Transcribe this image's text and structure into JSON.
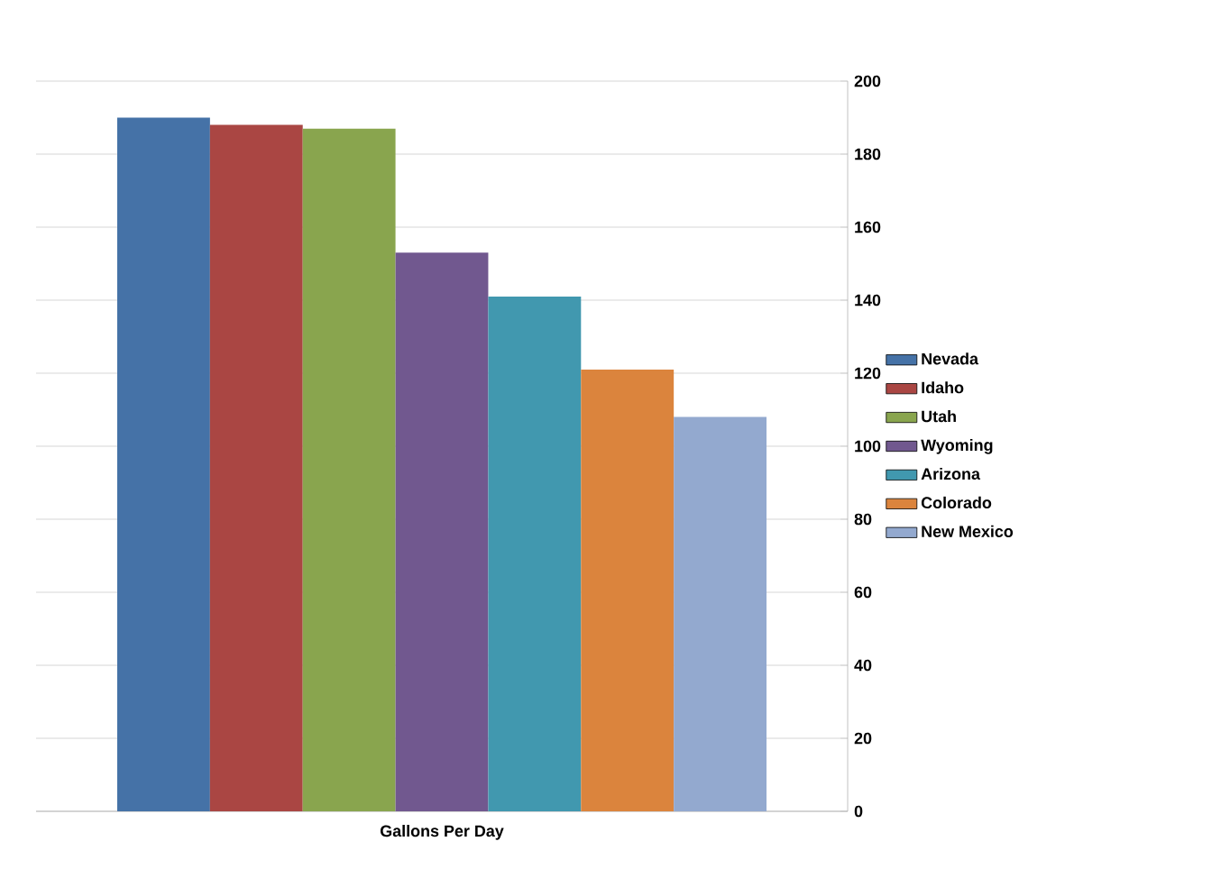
{
  "chart_data": {
    "type": "bar",
    "categories": [
      "Gallons Per Day"
    ],
    "series": [
      {
        "name": "Nevada",
        "color": "#4572a7",
        "values": [
          190
        ]
      },
      {
        "name": "Idaho",
        "color": "#aa4643",
        "values": [
          188
        ]
      },
      {
        "name": "Utah",
        "color": "#89a54e",
        "values": [
          187
        ]
      },
      {
        "name": "Wyoming",
        "color": "#71588f",
        "values": [
          153
        ]
      },
      {
        "name": "Arizona",
        "color": "#4198af",
        "values": [
          141
        ]
      },
      {
        "name": "Colorado",
        "color": "#db843d",
        "values": [
          121
        ]
      },
      {
        "name": "New Mexico",
        "color": "#93a9cf",
        "values": [
          108
        ]
      }
    ],
    "ylim": [
      0,
      200
    ],
    "yticks": [
      0,
      20,
      40,
      60,
      80,
      100,
      120,
      140,
      160,
      180,
      200
    ],
    "grid": "y",
    "legend": "right"
  }
}
